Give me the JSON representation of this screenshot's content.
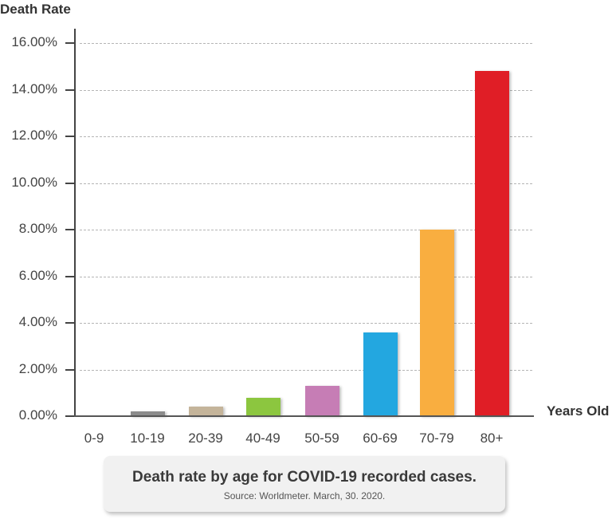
{
  "chart_data": {
    "type": "bar",
    "title": "Death rate by age for COVID-19 recorded cases.",
    "subtitle": "Source: Worldmeter. March, 30. 2020.",
    "xlabel": "Years Old",
    "ylabel": "Death Rate",
    "categories": [
      "0-9",
      "10-19",
      "20-39",
      "40-49",
      "50-59",
      "60-69",
      "70-79",
      "80+"
    ],
    "values": [
      0.0,
      0.2,
      0.4,
      0.8,
      1.3,
      3.6,
      8.0,
      14.8
    ],
    "value_unit": "%",
    "colors": [
      "#8c8c8c",
      "#8c8c8c",
      "#c4b49a",
      "#8cc63f",
      "#c67db5",
      "#23a7e0",
      "#f9ae40",
      "#e01e26"
    ],
    "ylim": [
      0,
      16
    ],
    "yticks": [
      "0.00%",
      "2.00%",
      "4.00%",
      "6.00%",
      "8.00%",
      "10.00%",
      "12.00%",
      "14.00%",
      "16.00%"
    ],
    "grid": true,
    "legend": null
  },
  "caption": {
    "title": "Death rate by age for COVID-19 recorded cases.",
    "source": "Source: Worldmeter. March, 30. 2020."
  }
}
